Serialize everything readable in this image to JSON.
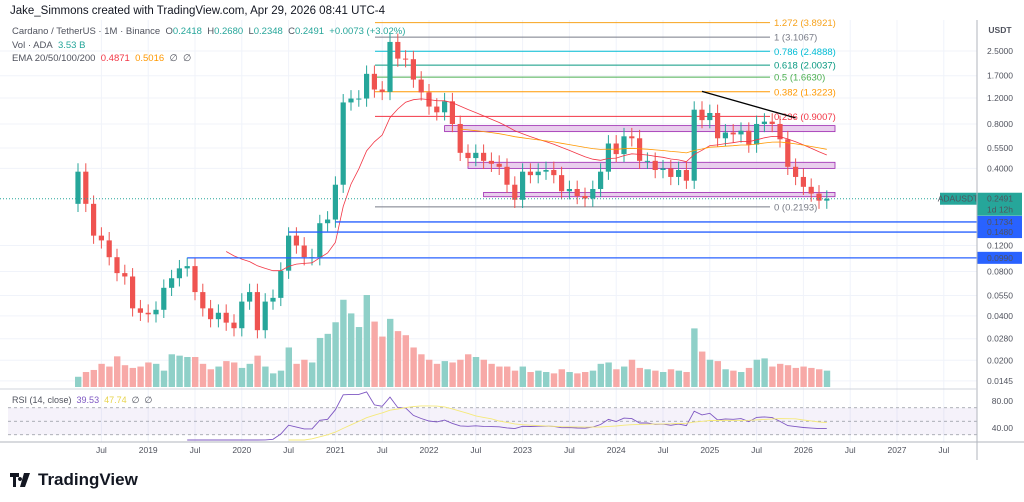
{
  "credit": "Jake_Simmons created with TradingView.com, Apr 29, 2026 08:41 UTC-4",
  "symbol": {
    "title": "Cardano / TetherUS · 1M · Binance",
    "open_label": "O",
    "open": "0.2418",
    "high_label": "H",
    "high": "0.2680",
    "low_label": "L",
    "low": "0.2348",
    "close_label": "C",
    "close": "0.2491",
    "change": "+0.0073 (+3.02%)",
    "ticker": "ADAUSDT",
    "countdown": "1d 12h"
  },
  "volume_legend": {
    "label": "Vol · ADA",
    "value": "3.53 B"
  },
  "ema_legend": {
    "label": "EMA 20/50/100/200",
    "ema20": "0.4871",
    "ema50": "0.5016",
    "ema100": "∅",
    "ema200": "∅"
  },
  "rsi_legend": {
    "label": "RSI (14, close)",
    "rsi": "39.53",
    "ma": "47.74",
    "extra1": "∅",
    "extra2": "∅"
  },
  "currency": "USDT",
  "price_ticks": [
    "2.5000",
    "1.7000",
    "1.2000",
    "0.8000",
    "0.5500",
    "0.4000",
    "0.1200",
    "0.0800",
    "0.0550",
    "0.0400",
    "0.0280",
    "0.0200",
    "0.0145"
  ],
  "rsi_ticks": [
    "80.00",
    "40.00"
  ],
  "time_ticks": [
    "Jul",
    "2019",
    "Jul",
    "2020",
    "Jul",
    "2021",
    "Jul",
    "2022",
    "Jul",
    "2023",
    "Jul",
    "2024",
    "Jul",
    "2025",
    "Jul",
    "2026",
    "Jul",
    "2027",
    "Jul"
  ],
  "fib_levels": [
    {
      "label": "1.272 (3.8921)",
      "price": 3.8921,
      "color": "#f7a21b"
    },
    {
      "label": "1 (3.1067)",
      "price": 3.1067,
      "color": "#787b86"
    },
    {
      "label": "0.786 (2.4888)",
      "price": 2.4888,
      "color": "#00bcd4"
    },
    {
      "label": "0.618 (2.0037)",
      "price": 2.0037,
      "color": "#089981"
    },
    {
      "label": "0.5 (1.6630)",
      "price": 1.663,
      "color": "#4caf50"
    },
    {
      "label": "0.382 (1.3223)",
      "price": 1.3223,
      "color": "#ff9800"
    },
    {
      "label": "0.236 (0.9007)",
      "price": 0.9007,
      "color": "#f23645"
    },
    {
      "label": "0 (0.2193)",
      "price": 0.2193,
      "color": "#787b86"
    }
  ],
  "horizontal_lines": [
    {
      "label": "0.1734",
      "price": 0.1734,
      "from": "2021-01"
    },
    {
      "label": "0.1480",
      "price": 0.148,
      "from": "2020-07"
    },
    {
      "label": "0.0990",
      "price": 0.099,
      "from": "2019-06"
    }
  ],
  "zones": [
    {
      "top": 0.78,
      "bottom": 0.71,
      "from": "2022-03"
    },
    {
      "top": 0.44,
      "bottom": 0.4,
      "from": "2022-06"
    },
    {
      "top": 0.275,
      "bottom": 0.257,
      "from": "2022-08"
    }
  ],
  "trendline": {
    "from": {
      "date": "2024-12",
      "price": 1.33
    },
    "to": {
      "date": "2025-12",
      "price": 0.88
    }
  },
  "colors": {
    "up": "#26a69a",
    "down": "#ef5350",
    "vol_up": "#8fd0c8",
    "vol_down": "#f7a9a7",
    "ema20": "#f23645",
    "ema50": "#ff9800",
    "rsi": "#7e57c2",
    "rsi_ma": "#f5e97a",
    "hline": "#2962ff",
    "zone": "#e1bee7",
    "zone_border": "#9c27b0"
  },
  "chart_data": {
    "type": "candlestick",
    "interval": "1M",
    "start": "2018-04",
    "first_open": 0.23,
    "closes": [
      0.38,
      0.23,
      0.14,
      0.13,
      0.1,
      0.078,
      0.074,
      0.045,
      0.042,
      0.041,
      0.044,
      0.062,
      0.072,
      0.084,
      0.087,
      0.058,
      0.045,
      0.038,
      0.042,
      0.036,
      0.033,
      0.05,
      0.058,
      0.032,
      0.05,
      0.053,
      0.081,
      0.14,
      0.12,
      0.1,
      0.1,
      0.17,
      0.18,
      0.31,
      1.12,
      1.19,
      1.19,
      1.75,
      1.37,
      1.32,
      2.88,
      2.22,
      2.2,
      1.6,
      1.31,
      1.05,
      0.96,
      1.14,
      0.8,
      0.51,
      0.47,
      0.51,
      0.45,
      0.43,
      0.41,
      0.31,
      0.245,
      0.38,
      0.36,
      0.38,
      0.39,
      0.36,
      0.28,
      0.29,
      0.26,
      0.25,
      0.29,
      0.38,
      0.59,
      0.5,
      0.66,
      0.64,
      0.45,
      0.45,
      0.39,
      0.4,
      0.35,
      0.39,
      0.33,
      1.0,
      0.85,
      0.95,
      0.64,
      0.7,
      0.68,
      0.72,
      0.58,
      0.8,
      0.83,
      0.8,
      0.63,
      0.41,
      0.35,
      0.3,
      0.27,
      0.2418,
      0.2491
    ],
    "volumes": [
      15,
      22,
      25,
      34,
      30,
      45,
      32,
      28,
      30,
      36,
      34,
      24,
      48,
      46,
      44,
      44,
      34,
      26,
      30,
      38,
      36,
      28,
      34,
      46,
      30,
      20,
      24,
      58,
      34,
      40,
      36,
      72,
      78,
      95,
      128,
      108,
      88,
      135,
      96,
      74,
      100,
      82,
      76,
      58,
      48,
      40,
      34,
      38,
      36,
      40,
      48,
      44,
      40,
      34,
      30,
      30,
      24,
      30,
      22,
      24,
      22,
      20,
      26,
      22,
      20,
      22,
      24,
      34,
      36,
      26,
      30,
      40,
      28,
      26,
      24,
      22,
      26,
      24,
      22,
      86,
      52,
      40,
      38,
      26,
      24,
      22,
      28,
      40,
      42,
      30,
      34,
      32,
      28,
      30,
      28,
      26,
      24
    ],
    "price_scale": "log",
    "ylim": [
      0.0145,
      3.9
    ]
  }
}
